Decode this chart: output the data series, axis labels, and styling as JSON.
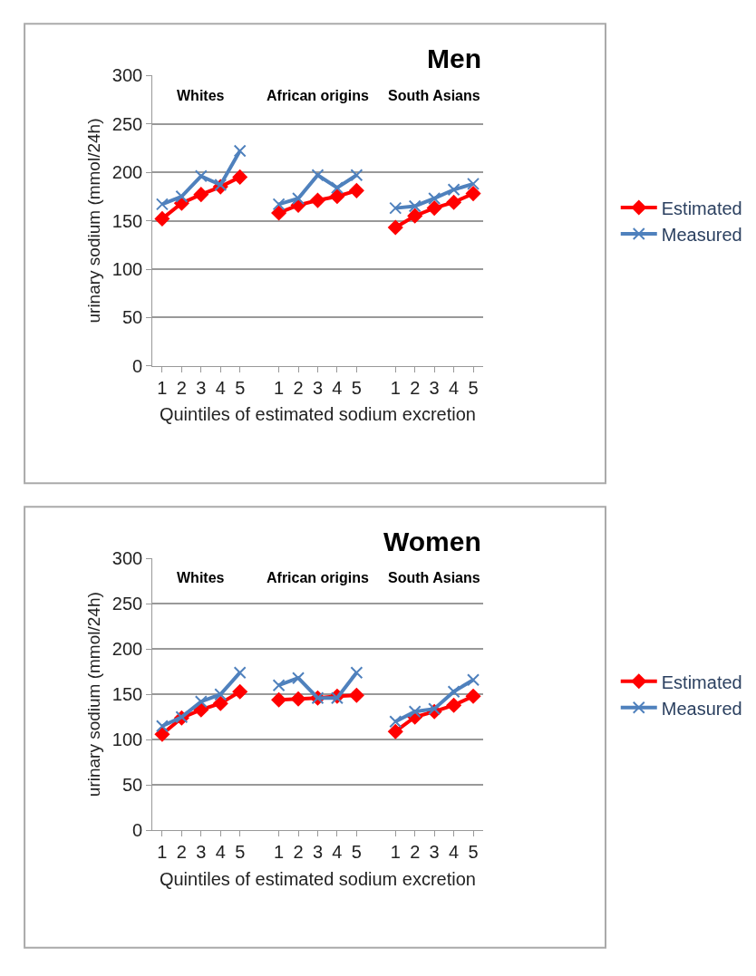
{
  "chart_data": [
    {
      "type": "line",
      "title": "Men",
      "xlabel": "Quintiles of estimated sodium excretion",
      "ylabel": "urinary sodium (mmol/24h)",
      "categories": [
        "1",
        "2",
        "3",
        "4",
        "5",
        null,
        "1",
        "2",
        "3",
        "4",
        "5",
        null,
        "1",
        "2",
        "3",
        "4",
        "5"
      ],
      "series": [
        {
          "name": "Estimated",
          "color": "#ff0000",
          "marker": "diamond",
          "values": [
            152,
            168,
            177,
            185,
            195,
            null,
            158,
            166,
            171,
            175,
            181,
            null,
            143,
            155,
            163,
            169,
            178
          ]
        },
        {
          "name": "Measured",
          "color": "#4f81bd",
          "marker": "cross",
          "values": [
            167,
            175,
            196,
            187,
            222,
            null,
            167,
            173,
            197,
            184,
            197,
            null,
            163,
            165,
            173,
            182,
            188
          ]
        }
      ],
      "annotations": [
        "Whites",
        "African origins",
        "South Asians"
      ],
      "ylim": [
        0,
        300
      ],
      "yticks": [
        0,
        50,
        100,
        150,
        200,
        250,
        300
      ],
      "grid": "y",
      "legend": "right"
    },
    {
      "type": "line",
      "title": "Women",
      "xlabel": "Quintiles of estimated sodium excretion",
      "ylabel": "urinary sodium (mmol/24h)",
      "categories": [
        "1",
        "2",
        "3",
        "4",
        "5",
        null,
        "1",
        "2",
        "3",
        "4",
        "5",
        null,
        "1",
        "2",
        "3",
        "4",
        "5"
      ],
      "series": [
        {
          "name": "Estimated",
          "color": "#ff0000",
          "marker": "diamond",
          "values": [
            106,
            124,
            133,
            140,
            153,
            null,
            144,
            145,
            146,
            148,
            149,
            null,
            109,
            125,
            131,
            138,
            148
          ]
        },
        {
          "name": "Measured",
          "color": "#4f81bd",
          "marker": "cross",
          "values": [
            115,
            125,
            142,
            150,
            174,
            null,
            160,
            168,
            146,
            146,
            174,
            null,
            120,
            131,
            134,
            153,
            166
          ]
        }
      ],
      "annotations": [
        "Whites",
        "African origins",
        "South Asians"
      ],
      "ylim": [
        0,
        300
      ],
      "yticks": [
        0,
        50,
        100,
        150,
        200,
        250,
        300
      ],
      "grid": "y",
      "legend": "right"
    }
  ]
}
